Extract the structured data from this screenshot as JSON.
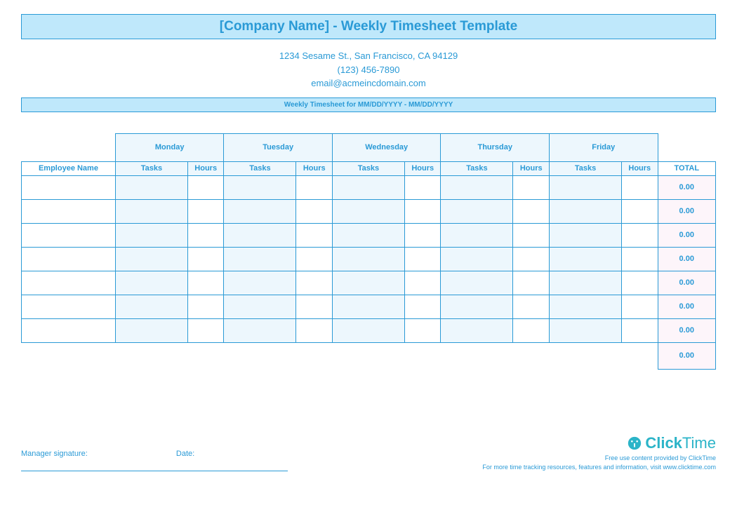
{
  "colors": {
    "primary_text": "#2a9ad6",
    "border": "#2a9ad6",
    "title_bg": "#bfe8fb",
    "subheader_bg": "#bfe8fb",
    "day_head_bg": "#edf7fd",
    "sub_head_bg": "#edf7fd",
    "tasks_cell_bg": "#edf7fd",
    "hours_cell_bg": "#ffffff",
    "total_cell_bg": "#fdf5fa",
    "white": "#ffffff"
  },
  "header": {
    "title": "[Company Name] - Weekly Timesheet Template",
    "address": "1234 Sesame St.,  San Francisco, CA 94129",
    "phone": "(123) 456-7890",
    "email": "email@acmeincdomain.com",
    "subheader": "Weekly Timesheet for MM/DD/YYYY - MM/DD/YYYY"
  },
  "table": {
    "employee_name_label": "Employee Name",
    "days": [
      "Monday",
      "Tuesday",
      "Wednesday",
      "Thursday",
      "Friday"
    ],
    "tasks_label": "Tasks",
    "hours_label": "Hours",
    "total_label": "TOTAL",
    "col_widths": {
      "employee": 130,
      "tasks": 100,
      "hours": 50,
      "total": 80
    },
    "rows": [
      {
        "employee": "",
        "cells": [
          "",
          "",
          "",
          "",
          "",
          "",
          "",
          "",
          "",
          ""
        ],
        "total": "0.00"
      },
      {
        "employee": "",
        "cells": [
          "",
          "",
          "",
          "",
          "",
          "",
          "",
          "",
          "",
          ""
        ],
        "total": "0.00"
      },
      {
        "employee": "",
        "cells": [
          "",
          "",
          "",
          "",
          "",
          "",
          "",
          "",
          "",
          ""
        ],
        "total": "0.00"
      },
      {
        "employee": "",
        "cells": [
          "",
          "",
          "",
          "",
          "",
          "",
          "",
          "",
          "",
          ""
        ],
        "total": "0.00"
      },
      {
        "employee": "",
        "cells": [
          "",
          "",
          "",
          "",
          "",
          "",
          "",
          "",
          "",
          ""
        ],
        "total": "0.00"
      },
      {
        "employee": "",
        "cells": [
          "",
          "",
          "",
          "",
          "",
          "",
          "",
          "",
          "",
          ""
        ],
        "total": "0.00"
      },
      {
        "employee": "",
        "cells": [
          "",
          "",
          "",
          "",
          "",
          "",
          "",
          "",
          "",
          ""
        ],
        "total": "0.00"
      }
    ],
    "grand_total": "0.00"
  },
  "footer": {
    "signature_label": "Manager signature:",
    "date_label": "Date:",
    "brand_name_bold": "Click",
    "brand_name_light": "Time",
    "credit_line": "Free use content provided by ClickTime",
    "info_line": "For more time tracking resources, features and information, visit www.clicktime.com"
  }
}
